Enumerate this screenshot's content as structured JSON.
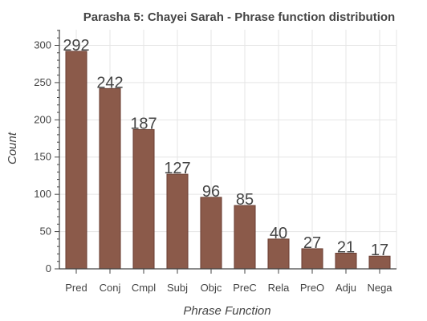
{
  "chart_data": {
    "type": "bar",
    "title": "Parasha 5: Chayei Sarah - Phrase function distribution",
    "xlabel": "Phrase Function",
    "ylabel": "Count",
    "categories": [
      "Pred",
      "Conj",
      "Cmpl",
      "Subj",
      "Objc",
      "PreC",
      "Rela",
      "PreO",
      "Adju",
      "Nega"
    ],
    "values": [
      292,
      242,
      187,
      127,
      96,
      85,
      40,
      27,
      21,
      17
    ],
    "ylim": [
      0,
      321
    ],
    "yticks": [
      0,
      50,
      100,
      150,
      200,
      250,
      300
    ],
    "grid": true,
    "bar_color": "#8b5a4a",
    "bar_edge_color": "#6b3f33"
  }
}
